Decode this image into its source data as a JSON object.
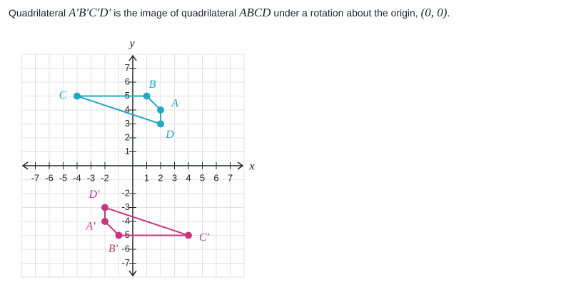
{
  "question": {
    "parts": [
      "Quadrilateral ",
      "A′B′C′D′",
      " is the image of quadrilateral ",
      "ABCD",
      " under a rotation about the origin, ",
      "(0, 0)",
      "."
    ]
  },
  "chart_data": {
    "type": "polygon",
    "x_label": "x",
    "y_label": "y",
    "xlim": [
      -8,
      8
    ],
    "ylim": [
      -8,
      8
    ],
    "xticks": [
      -7,
      -6,
      -5,
      -4,
      -3,
      -2,
      1,
      2,
      3,
      4,
      5,
      6,
      7
    ],
    "yticks": [
      -7,
      -6,
      -5,
      -4,
      -3,
      -2,
      1,
      2,
      3,
      4,
      5,
      6,
      7
    ],
    "grid": true,
    "series": [
      {
        "color": "#1fa8c9",
        "labels": [
          "A",
          "B",
          "C",
          "D"
        ],
        "x": [
          2,
          1,
          -4,
          2
        ],
        "y": [
          4,
          5,
          5,
          3
        ]
      },
      {
        "color": "#c9357f",
        "labels": [
          "A′",
          "B′",
          "C′",
          "D′"
        ],
        "x": [
          -2,
          -1,
          4,
          -2
        ],
        "y": [
          -4,
          -5,
          -5,
          -3
        ]
      }
    ]
  }
}
